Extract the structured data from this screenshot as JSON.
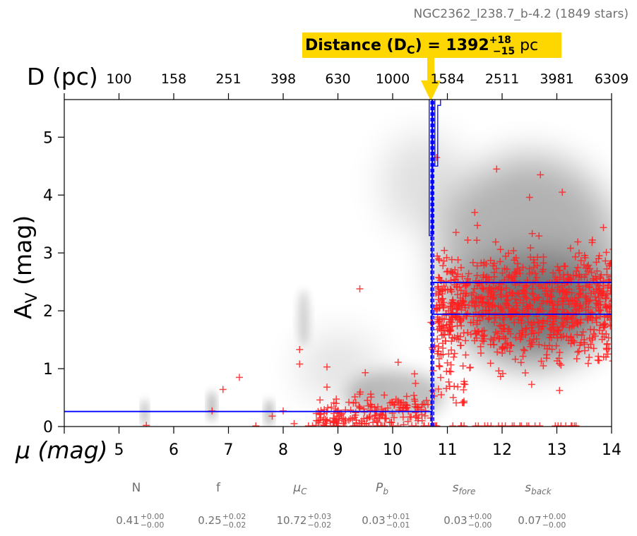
{
  "header": {
    "cluster_title": "NGC2362_l238.7_b-4.2 (1849 stars)"
  },
  "callout": {
    "prefix": "Distance (D",
    "sub": "C",
    "eq": ") = 1392",
    "sup": "+18",
    "subv": "−15",
    "unit": " pc",
    "bg_color": "#FFD700",
    "arrow_color": "#FFD700"
  },
  "chart_data": {
    "type": "scatter",
    "xlabel": "μ (mag)",
    "ylabel_main": "A",
    "ylabel_sub": "V",
    "ylabel_unit": " (mag)",
    "xlim": [
      4,
      14
    ],
    "ylim": [
      0,
      5.65
    ],
    "x_ticks": [
      "5",
      "6",
      "7",
      "8",
      "9",
      "10",
      "11",
      "12",
      "13",
      "14"
    ],
    "y_ticks": [
      "0",
      "1",
      "2",
      "3",
      "4",
      "5"
    ],
    "top_axis": {
      "label": "D (pc)",
      "ticks": [
        "100",
        "158",
        "251",
        "398",
        "630",
        "1000",
        "1584",
        "2511",
        "3981",
        "6309"
      ]
    },
    "colors": {
      "points": "#FF2020",
      "fit_lines": "#0000FF",
      "density": "#000000"
    },
    "cluster_distance_modulus": 10.72,
    "extinction_steps": {
      "foreground_av": 0.26,
      "behind_lower_av": 1.94,
      "behind_upper_av": 2.49
    },
    "points_sample": [
      [
        5.5,
        0.02
      ],
      [
        6.7,
        0.27
      ],
      [
        6.9,
        0.64
      ],
      [
        7.2,
        0.85
      ],
      [
        7.5,
        0.01
      ],
      [
        7.8,
        0.18
      ],
      [
        8.0,
        0.27
      ],
      [
        8.2,
        0.05
      ],
      [
        8.3,
        1.08
      ],
      [
        8.3,
        1.33
      ],
      [
        8.6,
        0.02
      ],
      [
        8.8,
        0.68
      ],
      [
        8.8,
        1.03
      ],
      [
        9.0,
        0.28
      ],
      [
        9.1,
        0.05
      ],
      [
        9.2,
        0.42
      ],
      [
        9.4,
        0.32
      ],
      [
        9.4,
        2.38
      ],
      [
        9.5,
        0.93
      ],
      [
        9.6,
        0.56
      ],
      [
        9.8,
        0.3
      ],
      [
        10.0,
        0.42
      ],
      [
        10.1,
        1.11
      ],
      [
        10.2,
        0.03
      ],
      [
        10.4,
        0.47
      ],
      [
        10.4,
        0.91
      ],
      [
        10.6,
        0.27
      ],
      [
        10.7,
        1.8
      ],
      [
        10.8,
        4.65
      ],
      [
        11.0,
        1.1
      ],
      [
        11.5,
        3.7
      ],
      [
        11.9,
        4.45
      ],
      [
        12.0,
        0.01
      ],
      [
        12.5,
        3.96
      ],
      [
        12.7,
        4.35
      ],
      [
        13.1,
        4.05
      ],
      [
        13.5,
        1.5
      ],
      [
        13.9,
        1.6
      ],
      [
        14.0,
        2.6
      ]
    ]
  },
  "params": [
    {
      "name": "N",
      "value": "0.41",
      "up": "+0.00",
      "down": "−0.00",
      "italic": false
    },
    {
      "name": "f",
      "value": "0.25",
      "up": "+0.02",
      "down": "−0.02",
      "italic": false
    },
    {
      "name": "μ",
      "sub": "C",
      "value": "10.72",
      "up": "+0.03",
      "down": "−0.02",
      "italic": true
    },
    {
      "name": "P",
      "sub": "b",
      "value": "0.03",
      "up": "+0.01",
      "down": "−0.01",
      "italic": true
    },
    {
      "name": "s",
      "sub": "fore",
      "value": "0.03",
      "up": "+0.00",
      "down": "−0.00",
      "italic": true
    },
    {
      "name": "s",
      "sub": "back",
      "value": "0.07",
      "up": "+0.00",
      "down": "−0.00",
      "italic": true
    }
  ]
}
